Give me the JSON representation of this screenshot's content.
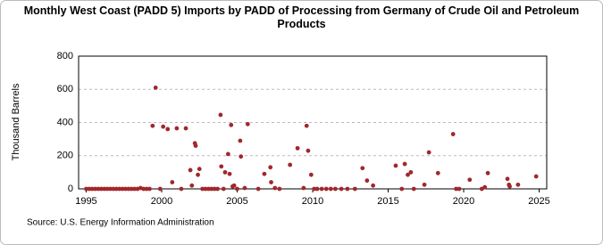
{
  "chart_data": {
    "type": "scatter",
    "title": "Monthly West Coast (PADD 5) Imports by PADD of Processing from Germany of Crude Oil and Petroleum Products",
    "ylabel": "Thousand Barrels",
    "source": "Source: U.S. Energy Information Administration",
    "color": "#a0282c",
    "grid": true,
    "xlim": [
      1994.5,
      2025.5
    ],
    "xticks": [
      1995,
      2000,
      2005,
      2010,
      2015,
      2020,
      2025
    ],
    "ylim": [
      0,
      800
    ],
    "yticks": [
      0,
      200,
      400,
      600,
      800
    ],
    "series": [
      {
        "name": "Imports",
        "x": [
          1995.0,
          1995.2,
          1995.4,
          1995.6,
          1995.8,
          1996.0,
          1996.2,
          1996.4,
          1996.6,
          1996.8,
          1997.0,
          1997.2,
          1997.4,
          1997.6,
          1997.8,
          1998.0,
          1998.2,
          1998.4,
          1998.6,
          1998.8,
          1999.0,
          1999.2,
          1999.4,
          1999.6,
          1999.9,
          2000.1,
          2000.4,
          2000.7,
          2001.0,
          2001.3,
          2001.6,
          2001.9,
          2002.0,
          2002.2,
          2002.25,
          2002.4,
          2002.5,
          2002.7,
          2002.9,
          2003.1,
          2003.3,
          2003.5,
          2003.7,
          2003.9,
          2003.95,
          2004.1,
          2004.2,
          2004.4,
          2004.5,
          2004.6,
          2004.7,
          2004.8,
          2005.0,
          2005.2,
          2005.25,
          2005.5,
          2005.7,
          2006.4,
          2006.8,
          2007.2,
          2007.25,
          2007.5,
          2007.8,
          2008.5,
          2009.0,
          2009.4,
          2009.6,
          2009.7,
          2009.9,
          2010.1,
          2010.3,
          2010.6,
          2010.9,
          2011.2,
          2011.5,
          2011.9,
          2012.3,
          2012.8,
          2013.3,
          2013.6,
          2014.0,
          2015.5,
          2015.9,
          2016.1,
          2016.3,
          2016.5,
          2016.7,
          2017.4,
          2017.7,
          2018.3,
          2019.3,
          2019.5,
          2019.7,
          2020.4,
          2021.2,
          2021.4,
          2021.6,
          2022.9,
          2023.0,
          2023.05,
          2023.6,
          2024.8
        ],
        "values": [
          0,
          0,
          0,
          0,
          0,
          0,
          0,
          0,
          0,
          0,
          0,
          0,
          0,
          0,
          0,
          0,
          0,
          0,
          5,
          0,
          0,
          0,
          380,
          610,
          0,
          375,
          360,
          40,
          365,
          0,
          365,
          113,
          20,
          275,
          260,
          85,
          120,
          0,
          0,
          0,
          0,
          0,
          0,
          446,
          135,
          0,
          100,
          210,
          90,
          385,
          15,
          20,
          0,
          290,
          195,
          5,
          390,
          0,
          90,
          130,
          40,
          5,
          0,
          145,
          245,
          5,
          380,
          230,
          85,
          0,
          0,
          0,
          0,
          0,
          0,
          0,
          0,
          0,
          125,
          50,
          20,
          140,
          0,
          150,
          85,
          100,
          0,
          25,
          220,
          95,
          330,
          0,
          0,
          55,
          0,
          10,
          95,
          60,
          25,
          15,
          25,
          75
        ]
      }
    ]
  }
}
